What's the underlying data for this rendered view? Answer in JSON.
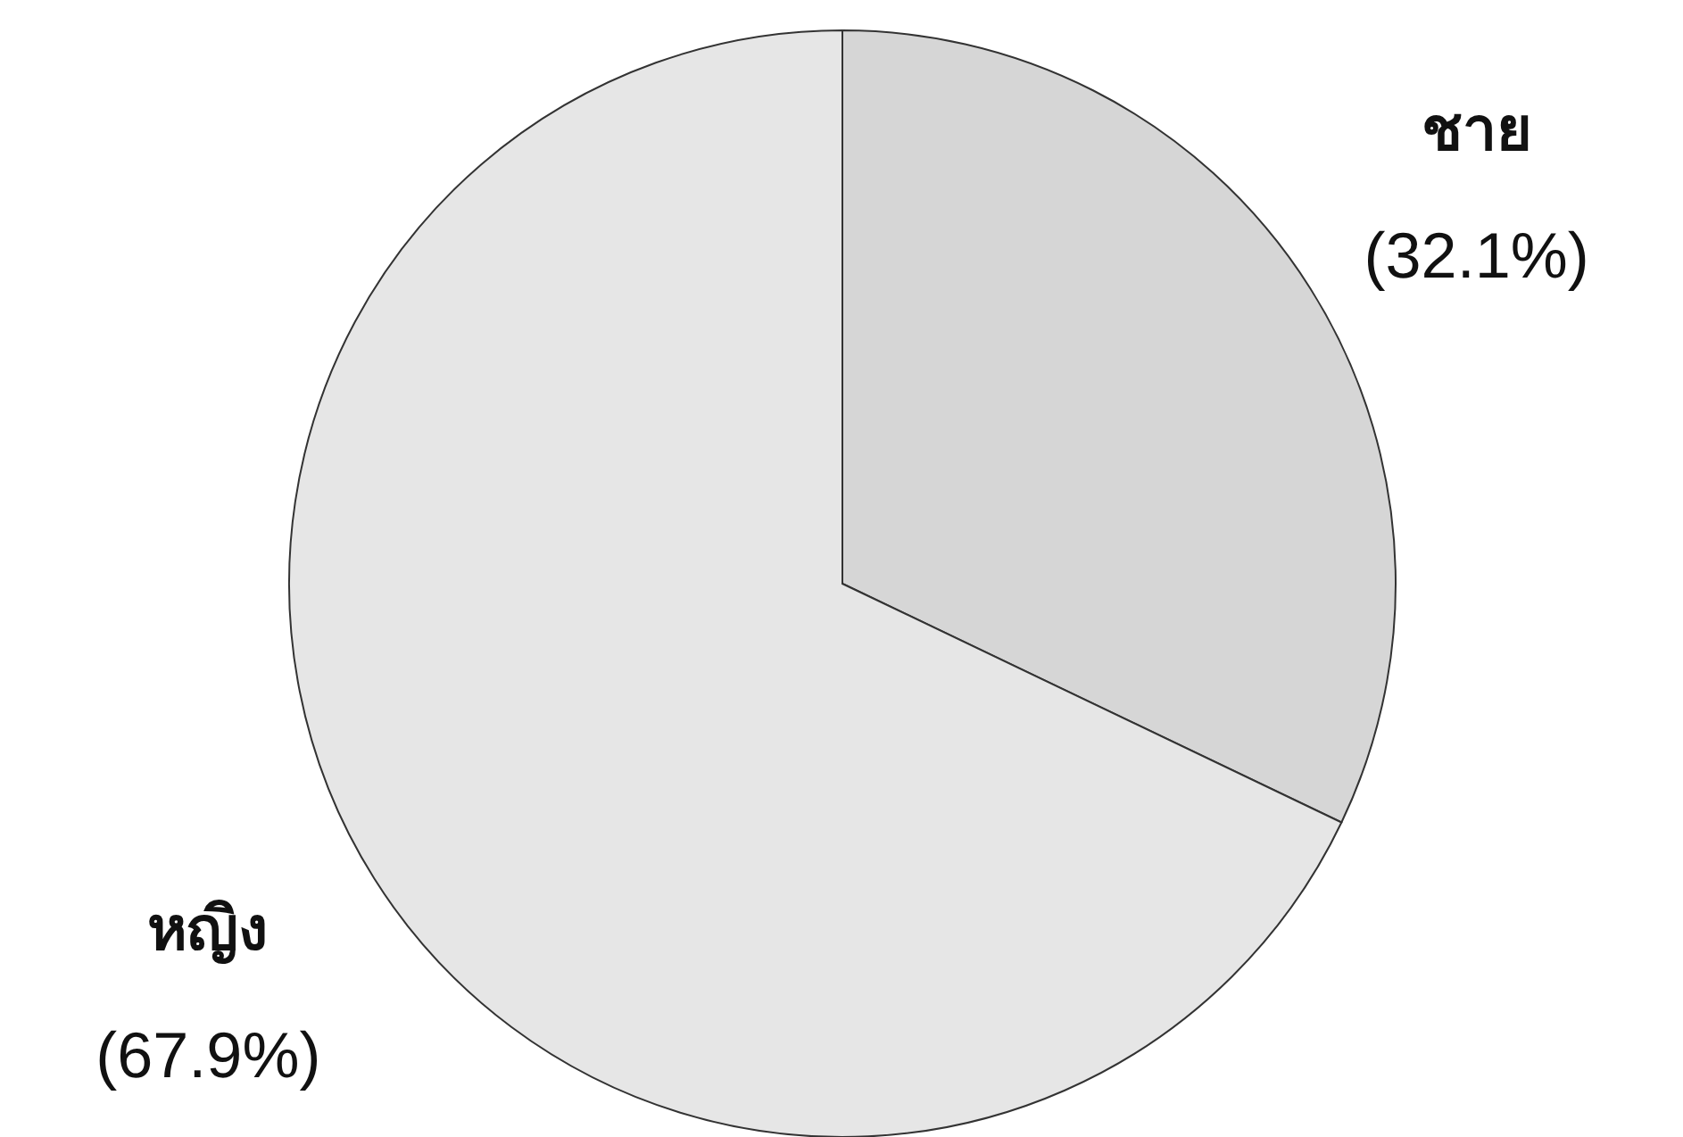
{
  "chart_data": {
    "type": "pie",
    "categories": [
      "ชาย",
      "หญิง"
    ],
    "values": [
      32.1,
      67.9
    ],
    "value_labels": [
      "(32.1%)",
      "(67.9%)"
    ],
    "colors": [
      "#d6d6d6",
      "#e6e6e6"
    ],
    "legend": false
  }
}
